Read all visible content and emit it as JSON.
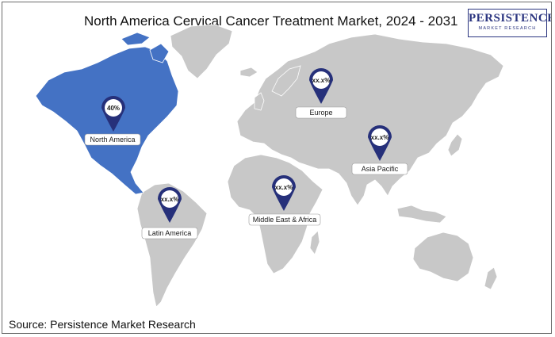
{
  "title": "North America Cervical Cancer Treatment Market, 2024 - 2031",
  "logo": {
    "main": "PERSISTENCE",
    "sub": "MARKET RESEARCH"
  },
  "source": "Source: Persistence Market Research",
  "colors": {
    "land": "#c8c8c8",
    "highlight": "#4472c4",
    "pin": "#26307a"
  },
  "regions": [
    {
      "id": "north-america",
      "label": "North America",
      "value": "40%"
    },
    {
      "id": "europe",
      "label": "Europe",
      "value": "xx.x%"
    },
    {
      "id": "asia-pacific",
      "label": "Asia Pacific",
      "value": "xx.x%"
    },
    {
      "id": "middle-east-africa",
      "label": "Middle East & Africa",
      "value": "xx.x%"
    },
    {
      "id": "latin-america",
      "label": "Latin America",
      "value": "xx.x%"
    }
  ]
}
